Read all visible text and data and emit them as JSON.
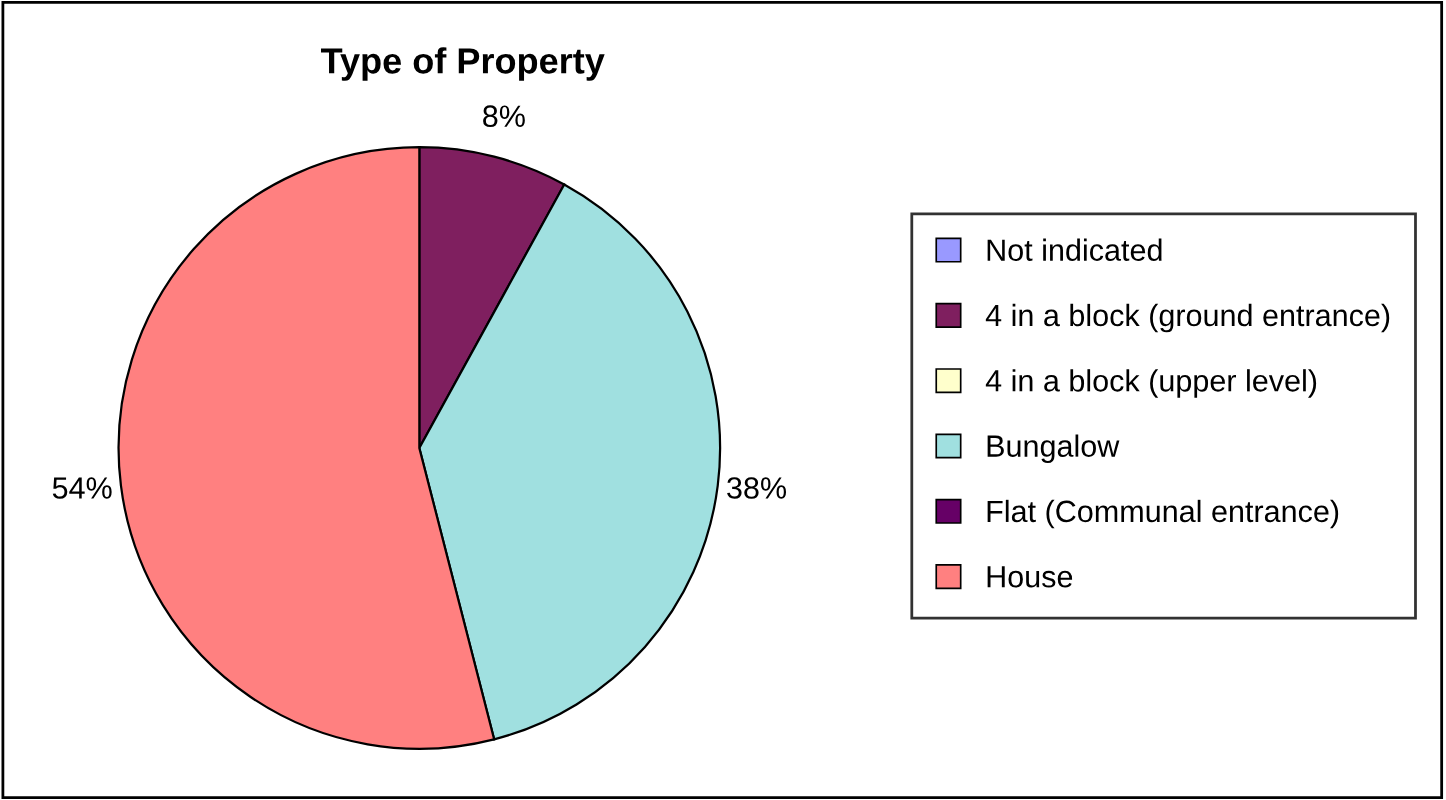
{
  "chart_data": {
    "type": "pie",
    "title": "Type of Property",
    "categories": [
      "Not indicated",
      "4 in a block (ground entrance)",
      "4 in a block (upper level)",
      "Bungalow",
      "Flat (Communal entrance)",
      "House"
    ],
    "values": [
      0,
      8,
      0,
      38,
      0,
      54
    ],
    "value_labels": [
      null,
      "8%",
      null,
      "38%",
      null,
      "54%"
    ],
    "colors": [
      "#9999ff",
      "#7f1f5f",
      "#ffffcc",
      "#a0e0e0",
      "#660066",
      "#ff8080"
    ],
    "legend": "right"
  }
}
